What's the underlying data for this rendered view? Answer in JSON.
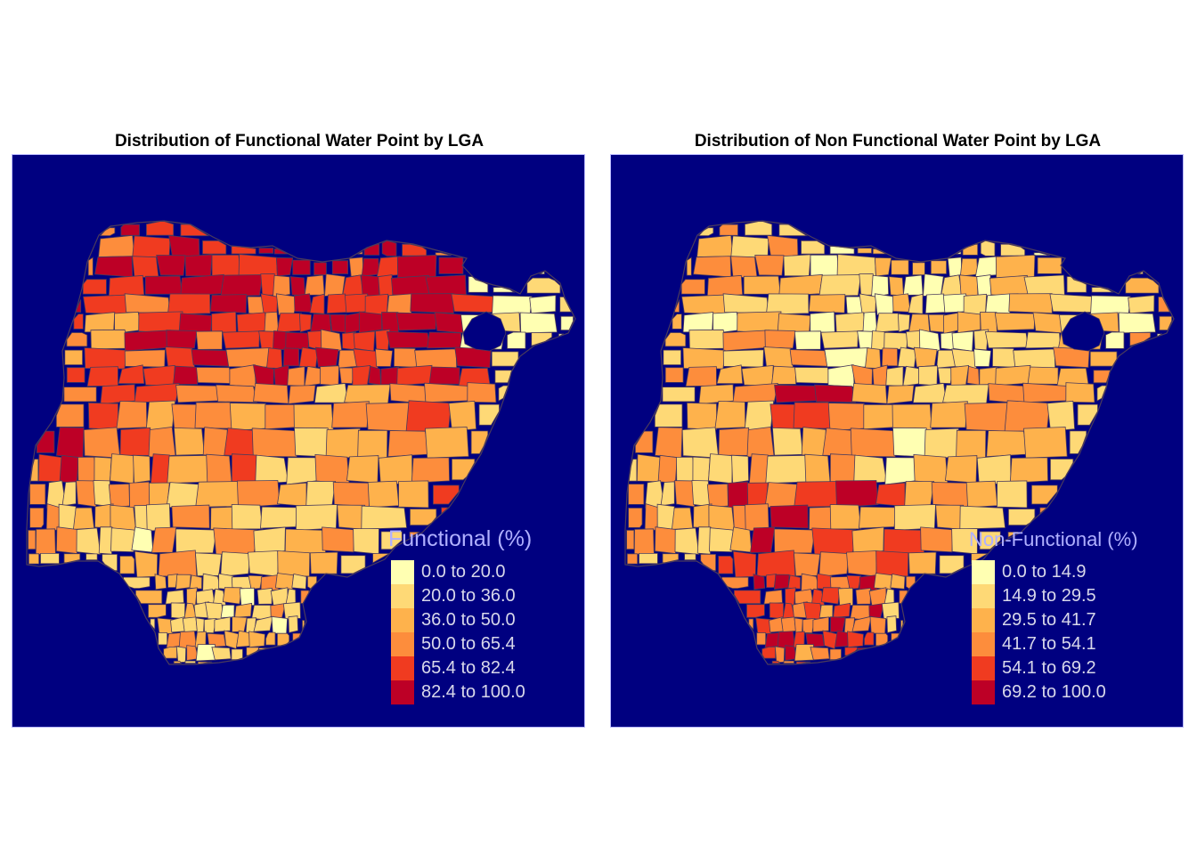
{
  "maps": [
    {
      "id": "functional",
      "title": "Distribution of Functional Water Point by LGA",
      "legend_title": "Functional (%)",
      "classes": [
        {
          "label": "0.0 to 20.0",
          "color": "#ffffb2"
        },
        {
          "label": "20.0 to 36.0",
          "color": "#fed976"
        },
        {
          "label": "36.0 to 50.0",
          "color": "#feb24c"
        },
        {
          "label": "50.0 to 65.4",
          "color": "#fd8d3c"
        },
        {
          "label": "65.4 to 82.4",
          "color": "#f03b20"
        },
        {
          "label": "82.4 to 100.0",
          "color": "#bd0026"
        }
      ]
    },
    {
      "id": "non-functional",
      "title": "Distribution of Non Functional Water Point by LGA",
      "legend_title": "Non-Functional (%)",
      "classes": [
        {
          "label": "0.0 to 14.9",
          "color": "#ffffb2"
        },
        {
          "label": "14.9 to 29.5",
          "color": "#fed976"
        },
        {
          "label": "29.5 to 41.7",
          "color": "#feb24c"
        },
        {
          "label": "41.7 to 54.1",
          "color": "#fd8d3c"
        },
        {
          "label": "54.1 to 69.2",
          "color": "#f03b20"
        },
        {
          "label": "69.2 to 100.0",
          "color": "#bd0026"
        }
      ]
    }
  ],
  "colors": {
    "background": "#000080",
    "frame_border": "#b8b8ff",
    "boundary_line": "#4a3b5c",
    "legend_title": "#b0b0ff",
    "legend_text": "#d8d8ea"
  }
}
